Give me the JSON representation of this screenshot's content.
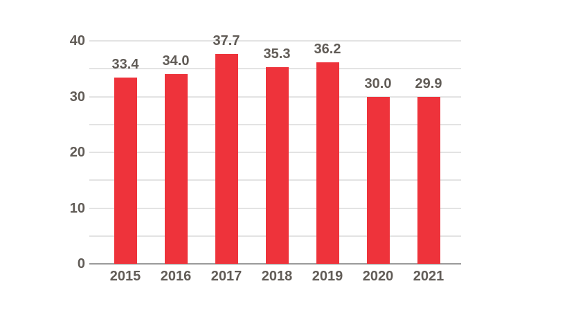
{
  "chart_data": {
    "type": "bar",
    "title": "",
    "xlabel": "",
    "ylabel": "",
    "categories": [
      "2015",
      "2016",
      "2017",
      "2018",
      "2019",
      "2020",
      "2021"
    ],
    "values": [
      33.4,
      34.0,
      37.7,
      35.3,
      36.2,
      30.0,
      29.9
    ],
    "value_labels": [
      "33.4",
      "34.0",
      "37.7",
      "35.3",
      "36.2",
      "30.0",
      "29.9"
    ],
    "ylim": [
      0,
      40
    ],
    "yticks": [
      0,
      10,
      20,
      30,
      40
    ],
    "ytick_labels": [
      "0",
      "10",
      "20",
      "30",
      "40"
    ],
    "gridline_step": 5,
    "grid": true,
    "legend_position": "none",
    "colors": {
      "bar": "#ee333b",
      "gridline": "#e3e3e3",
      "axis_line": "#9a9a9a",
      "text": "#615c57",
      "background": "#ffffff"
    }
  }
}
